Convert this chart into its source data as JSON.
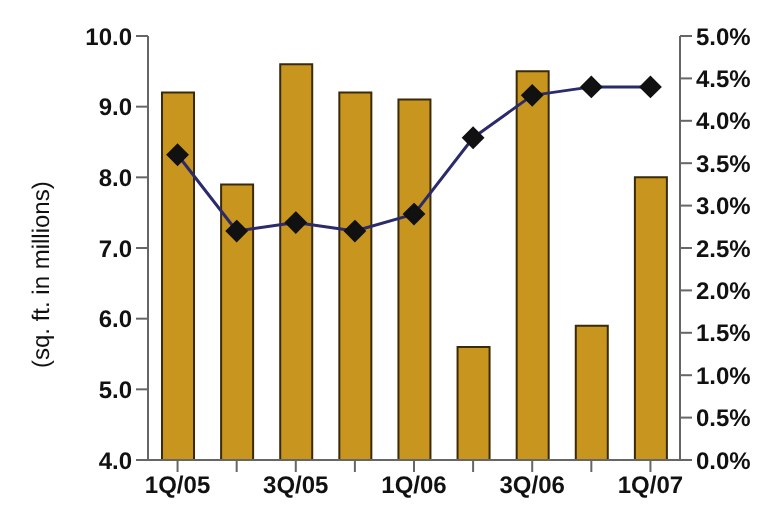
{
  "chart_data": {
    "type": "bar",
    "ylabel": "(sq. ft. in millions)",
    "categories": [
      "1Q/05",
      null,
      "3Q/05",
      null,
      "1Q/06",
      null,
      "3Q/06",
      null,
      "1Q/07"
    ],
    "series": [
      {
        "color": "#c8961e",
        "values": [
          9.2,
          7.9,
          9.6,
          9.2,
          9.1,
          5.6,
          9.5,
          5.9,
          8.0
        ]
      },
      {
        "type": "line",
        "axis": "y2",
        "color": "#2b2b6b",
        "marker": "diamond",
        "values": [
          3.6,
          2.7,
          2.8,
          2.7,
          2.9,
          3.8,
          4.3,
          4.4,
          4.4
        ]
      }
    ],
    "ylim": [
      4,
      10
    ],
    "yticks": [
      {
        "value": 4,
        "label": "4.0"
      },
      {
        "value": 5,
        "label": "5.0"
      },
      {
        "value": 6,
        "label": "6.0"
      },
      {
        "value": 7,
        "label": "7.0"
      },
      {
        "value": 8,
        "label": "8.0"
      },
      {
        "value": 9,
        "label": "9.0"
      },
      {
        "value": 10,
        "label": "10.0"
      }
    ],
    "y2lim": [
      0,
      5
    ],
    "y2ticks": [
      {
        "value": 0,
        "label": "0.0%"
      },
      {
        "value": 0.5,
        "label": "0.5%"
      },
      {
        "value": 1,
        "label": "1.0%"
      },
      {
        "value": 1.5,
        "label": "1.5%"
      },
      {
        "value": 2,
        "label": "2.0%"
      },
      {
        "value": 2.5,
        "label": "2.5%"
      },
      {
        "value": 3,
        "label": "3.0%"
      },
      {
        "value": 3.5,
        "label": "3.5%"
      },
      {
        "value": 4,
        "label": "4.0%"
      },
      {
        "value": 4.5,
        "label": "4.5%"
      },
      {
        "value": 5,
        "label": "5.0%"
      }
    ],
    "grid": false,
    "legend": false
  }
}
